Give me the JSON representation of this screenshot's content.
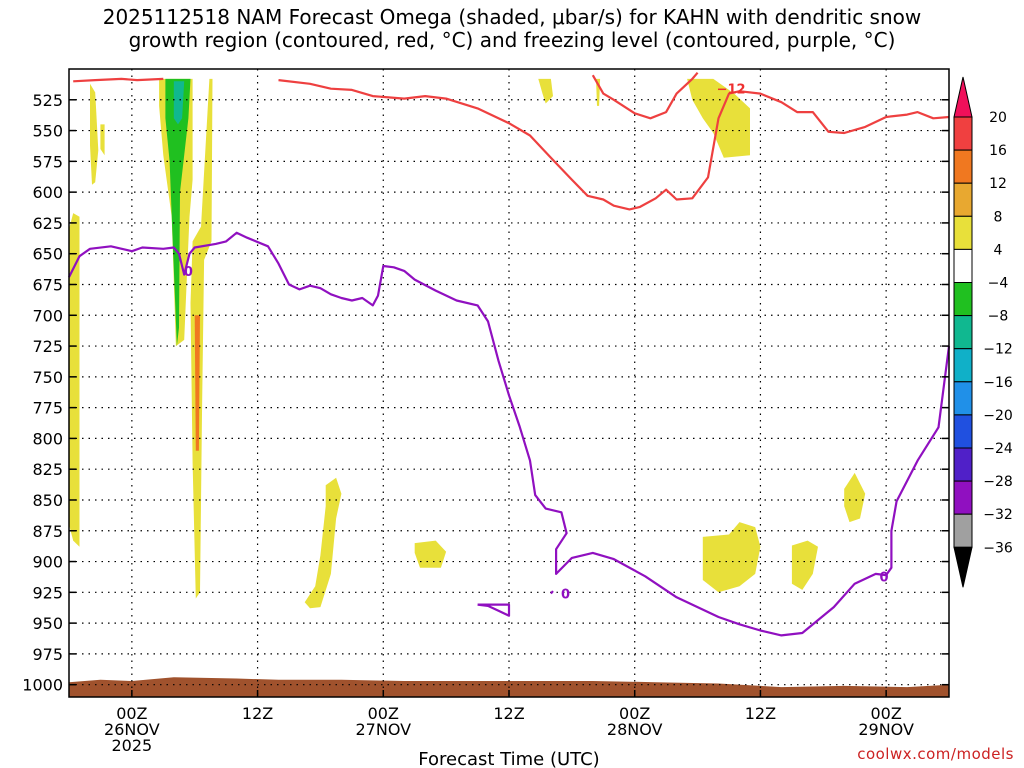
{
  "chart_data": {
    "type": "heatmap",
    "title_line1": "2025112518 NAM Forecast Omega (shaded, μbar/s) for KAHN with dendritic snow",
    "title_line2": "growth region (contoured, red, °C) and freezing level (contoured, purple, °C)",
    "xlabel": "Forecast Time (UTC)",
    "credit": "coolwx.com/models",
    "xlim": [
      -6,
      78
    ],
    "ylim": [
      1010,
      500
    ],
    "y_ticks": [
      525,
      550,
      575,
      600,
      625,
      650,
      675,
      700,
      725,
      750,
      775,
      800,
      825,
      850,
      875,
      900,
      925,
      950,
      975,
      1000
    ],
    "x_ticks": [
      {
        "hour": 0,
        "line1": "00Z",
        "line2": "26NOV",
        "line3": "2025"
      },
      {
        "hour": 12,
        "line1": "12Z",
        "line2": "",
        "line3": ""
      },
      {
        "hour": 24,
        "line1": "00Z",
        "line2": "27NOV",
        "line3": ""
      },
      {
        "hour": 36,
        "line1": "12Z",
        "line2": "",
        "line3": ""
      },
      {
        "hour": 48,
        "line1": "00Z",
        "line2": "28NOV",
        "line3": ""
      },
      {
        "hour": 60,
        "line1": "12Z",
        "line2": "",
        "line3": ""
      },
      {
        "hour": 72,
        "line1": "00Z",
        "line2": "29NOV",
        "line3": ""
      }
    ],
    "colorbar": {
      "labels": [
        "20",
        "16",
        "12",
        "8",
        "4",
        "−4",
        "−8",
        "−12",
        "−16",
        "−20",
        "−24",
        "−28",
        "−32",
        "−36"
      ],
      "colors": [
        "#f0105a",
        "#f04040",
        "#f07820",
        "#e8a830",
        "#e8e03a",
        "#ffffff",
        "#20c020",
        "#10b890",
        "#10b0c8",
        "#2090e8",
        "#2050e0",
        "#5020c8",
        "#9010c0",
        "#a0a0a0",
        "#000000"
      ]
    },
    "contour_labels": {
      "dgz": "−12",
      "freezing": "0"
    },
    "dgz_top_contour": [
      [
        -5.6,
        510
      ],
      [
        -3.5,
        509
      ],
      [
        -1,
        508
      ],
      [
        0.5,
        509
      ],
      [
        3,
        508
      ]
    ],
    "dgz_upper_contour": [
      [
        14,
        509
      ],
      [
        17,
        512
      ],
      [
        19,
        516
      ],
      [
        21,
        517
      ],
      [
        23,
        522
      ],
      [
        26,
        524
      ],
      [
        28,
        522
      ],
      [
        30,
        524
      ],
      [
        33,
        532
      ],
      [
        36,
        544
      ],
      [
        38,
        554
      ],
      [
        40,
        572
      ],
      [
        42,
        590
      ],
      [
        43.5,
        603
      ],
      [
        45,
        606
      ],
      [
        46,
        611
      ],
      [
        47.5,
        614
      ],
      [
        48.5,
        612
      ],
      [
        50,
        605
      ],
      [
        51,
        598
      ],
      [
        52,
        606
      ],
      [
        53.5,
        605
      ],
      [
        55,
        588
      ],
      [
        56,
        540
      ],
      [
        57,
        520
      ],
      [
        58,
        518
      ],
      [
        60,
        520
      ],
      [
        62,
        527
      ],
      [
        63.5,
        535
      ],
      [
        65,
        535
      ],
      [
        66.5,
        551
      ],
      [
        68,
        552
      ],
      [
        70,
        547
      ],
      [
        72,
        539
      ],
      [
        74,
        537
      ],
      [
        75,
        535
      ],
      [
        76.5,
        540
      ],
      [
        78,
        539
      ]
    ],
    "dgz_mid_contour": [
      [
        44,
        505
      ],
      [
        45,
        520
      ],
      [
        46,
        525
      ],
      [
        48,
        536
      ],
      [
        49.5,
        540
      ],
      [
        51,
        535
      ],
      [
        52,
        520
      ],
      [
        53.5,
        508
      ],
      [
        54,
        503
      ]
    ],
    "freezing_contour": [
      [
        -6,
        669
      ],
      [
        -5,
        652
      ],
      [
        -4,
        646
      ],
      [
        -2,
        644
      ],
      [
        0,
        648
      ],
      [
        1,
        645
      ],
      [
        3,
        646
      ],
      [
        4,
        645
      ],
      [
        4.5,
        650
      ],
      [
        5,
        667
      ],
      [
        5.5,
        650
      ],
      [
        6,
        645
      ],
      [
        8,
        642
      ],
      [
        9,
        640
      ],
      [
        10,
        633
      ],
      [
        11,
        637
      ],
      [
        13,
        644
      ],
      [
        14,
        658
      ],
      [
        15,
        675
      ],
      [
        16,
        679
      ],
      [
        17,
        676
      ],
      [
        18,
        678
      ],
      [
        19,
        683
      ],
      [
        20,
        686
      ],
      [
        21,
        688
      ],
      [
        22,
        686
      ],
      [
        23,
        692
      ],
      [
        23.5,
        684
      ],
      [
        24,
        660
      ],
      [
        25,
        661
      ],
      [
        26,
        664
      ],
      [
        27,
        671
      ],
      [
        29,
        680
      ],
      [
        31,
        688
      ],
      [
        33,
        692
      ],
      [
        34,
        705
      ],
      [
        35,
        737
      ],
      [
        36,
        765
      ],
      [
        37,
        790
      ],
      [
        38,
        818
      ],
      [
        38.5,
        846
      ],
      [
        39.5,
        857
      ],
      [
        41,
        860
      ],
      [
        41.5,
        877
      ],
      [
        40.5,
        890
      ],
      [
        40.5,
        910
      ],
      [
        42,
        897
      ],
      [
        44,
        893
      ],
      [
        46,
        898
      ],
      [
        49,
        912
      ],
      [
        52,
        929
      ],
      [
        56,
        945
      ],
      [
        58,
        951
      ],
      [
        60,
        956
      ],
      [
        62,
        960
      ],
      [
        64,
        958
      ],
      [
        67,
        937
      ],
      [
        69,
        918
      ],
      [
        71,
        910
      ],
      [
        72,
        911
      ],
      [
        72.5,
        905
      ],
      [
        72.5,
        875
      ],
      [
        73,
        851
      ],
      [
        75,
        818
      ],
      [
        77,
        791
      ],
      [
        78,
        725
      ]
    ],
    "freezing_islets": [
      [
        [
          33,
          935
        ],
        [
          36,
          935
        ],
        [
          36,
          944
        ],
        [
          35,
          940
        ],
        [
          34,
          936
        ],
        [
          33,
          935
        ]
      ],
      [
        [
          40,
          926
        ],
        [
          40.2,
          924
        ]
      ]
    ],
    "omega_regions": [
      {
        "value": 4,
        "points": [
          [
            -6,
            630
          ],
          [
            -5.6,
            617
          ],
          [
            -5,
            620
          ],
          [
            -5,
            888
          ],
          [
            -5.6,
            883
          ],
          [
            -6,
            870
          ]
        ]
      },
      {
        "value": 4,
        "points": [
          [
            -4,
            512
          ],
          [
            -3.5,
            519
          ],
          [
            -3.2,
            566
          ],
          [
            -3.5,
            592
          ],
          [
            -3.8,
            594
          ],
          [
            -4,
            562
          ]
        ]
      },
      {
        "value": 4,
        "points": [
          [
            -3,
            545
          ],
          [
            -2.6,
            545
          ],
          [
            -2.6,
            570
          ],
          [
            -3,
            565
          ]
        ]
      },
      {
        "value": 4,
        "points": [
          [
            2.6,
            508
          ],
          [
            5.8,
            508
          ],
          [
            5.8,
            590
          ],
          [
            5.5,
            620
          ],
          [
            5.2,
            680
          ],
          [
            5,
            720
          ],
          [
            4.2,
            725
          ],
          [
            3.8,
            620
          ],
          [
            3.0,
            570
          ],
          [
            2.6,
            530
          ]
        ]
      },
      {
        "value": 4,
        "points": [
          [
            5.8,
            640
          ],
          [
            6.6,
            628
          ],
          [
            7.4,
            508
          ],
          [
            7.7,
            508
          ],
          [
            7.6,
            640
          ],
          [
            6.9,
            655
          ],
          [
            6.7,
            780
          ],
          [
            6.5,
            925
          ],
          [
            6.1,
            930
          ],
          [
            5.8,
            820
          ],
          [
            5.6,
            690
          ]
        ]
      },
      {
        "value": 12,
        "points": [
          [
            6.0,
            700
          ],
          [
            6.5,
            700
          ],
          [
            6.4,
            810
          ],
          [
            6.1,
            810
          ]
        ]
      },
      {
        "value": -4,
        "points": [
          [
            3.2,
            508
          ],
          [
            5.6,
            508
          ],
          [
            5.4,
            540
          ],
          [
            4.6,
            600
          ],
          [
            4.5,
            710
          ],
          [
            4.3,
            725
          ],
          [
            3.9,
            640
          ],
          [
            3.6,
            575
          ],
          [
            3.2,
            540
          ]
        ]
      },
      {
        "value": -8,
        "points": [
          [
            4.0,
            510
          ],
          [
            5.0,
            510
          ],
          [
            4.8,
            540
          ],
          [
            4.4,
            545
          ],
          [
            4.0,
            540
          ]
        ]
      },
      {
        "value": 4,
        "points": [
          [
            16.5,
            933
          ],
          [
            17.5,
            920
          ],
          [
            18,
            895
          ],
          [
            18.5,
            855
          ],
          [
            18.5,
            838
          ],
          [
            19.5,
            832
          ],
          [
            20,
            845
          ],
          [
            19.5,
            865
          ],
          [
            19,
            910
          ],
          [
            18,
            937
          ],
          [
            17,
            938
          ]
        ]
      },
      {
        "value": 4,
        "points": [
          [
            27,
            885
          ],
          [
            29,
            883
          ],
          [
            30,
            892
          ],
          [
            29.5,
            905
          ],
          [
            27.5,
            905
          ],
          [
            27,
            893
          ]
        ]
      },
      {
        "value": 4,
        "points": [
          [
            38.8,
            508
          ],
          [
            40,
            508
          ],
          [
            40.2,
            522
          ],
          [
            39.5,
            528
          ],
          [
            39.2,
            520
          ]
        ]
      },
      {
        "value": 4,
        "points": [
          [
            44.3,
            508
          ],
          [
            44.7,
            508
          ],
          [
            44.6,
            530
          ],
          [
            44.4,
            530
          ]
        ]
      },
      {
        "value": 4,
        "points": [
          [
            53,
            508
          ],
          [
            55.5,
            508
          ],
          [
            57.5,
            520
          ],
          [
            59,
            532
          ],
          [
            59,
            570
          ],
          [
            56.5,
            572
          ],
          [
            55.5,
            552
          ],
          [
            54.5,
            540
          ],
          [
            53.5,
            525
          ]
        ]
      },
      {
        "value": 4,
        "points": [
          [
            54.5,
            880
          ],
          [
            57,
            878
          ],
          [
            58,
            868
          ],
          [
            59.5,
            872
          ],
          [
            60,
            888
          ],
          [
            59.5,
            910
          ],
          [
            58,
            920
          ],
          [
            56,
            925
          ],
          [
            54.5,
            915
          ]
        ]
      },
      {
        "value": 4,
        "points": [
          [
            63,
            887
          ],
          [
            64.5,
            883
          ],
          [
            65.5,
            888
          ],
          [
            65,
            910
          ],
          [
            64,
            923
          ],
          [
            63,
            918
          ]
        ]
      },
      {
        "value": 4,
        "points": [
          [
            68,
            841
          ],
          [
            69,
            828
          ],
          [
            70,
            845
          ],
          [
            69.5,
            865
          ],
          [
            68.5,
            868
          ],
          [
            68,
            855
          ]
        ]
      }
    ],
    "terrain": [
      [
        -6,
        1010
      ],
      [
        -6,
        998
      ],
      [
        -3,
        996
      ],
      [
        0,
        997
      ],
      [
        4,
        994
      ],
      [
        10,
        995
      ],
      [
        14,
        996
      ],
      [
        20,
        996
      ],
      [
        26,
        997
      ],
      [
        32,
        997
      ],
      [
        38,
        997
      ],
      [
        44,
        997
      ],
      [
        50,
        998
      ],
      [
        56,
        999
      ],
      [
        62,
        1002
      ],
      [
        68,
        1001
      ],
      [
        74,
        1002
      ],
      [
        78,
        1000
      ],
      [
        78,
        1010
      ]
    ]
  }
}
